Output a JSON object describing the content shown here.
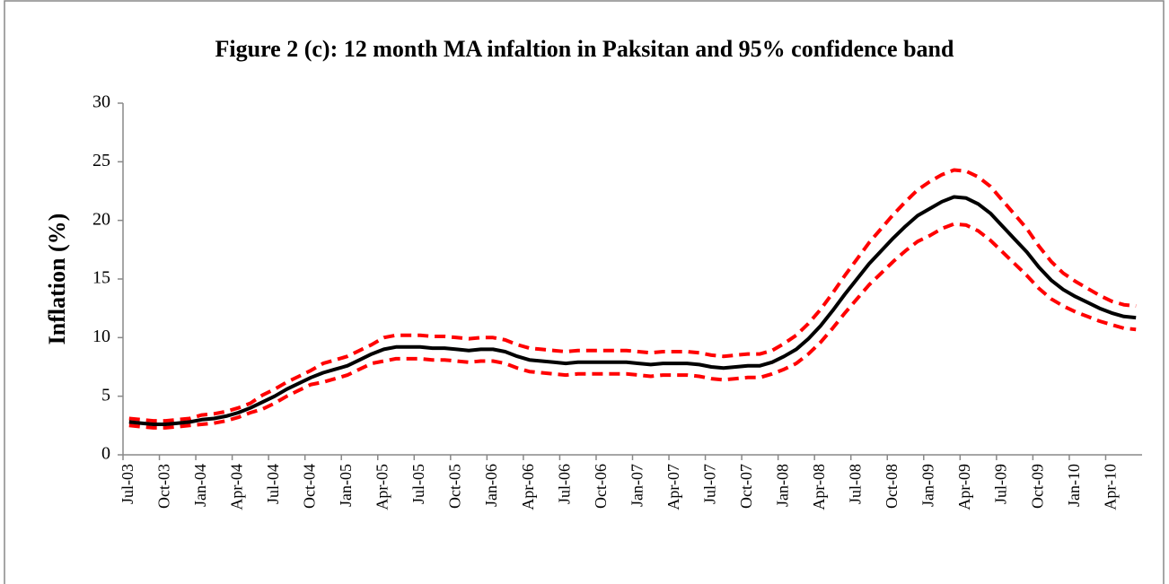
{
  "chart_data": {
    "type": "line",
    "title": "Figure 2 (c): 12 month MA infaltion in Paksitan and 95% confidence band",
    "ylabel": "Inflation (%)",
    "categories": [
      "Jul-03",
      null,
      null,
      "Oct-03",
      null,
      null,
      "Jan-04",
      null,
      null,
      "Apr-04",
      null,
      null,
      "Jul-04",
      null,
      null,
      "Oct-04",
      null,
      null,
      "Jan-05",
      null,
      null,
      "Apr-05",
      null,
      null,
      "Jul-05",
      null,
      null,
      "Oct-05",
      null,
      null,
      "Jan-06",
      null,
      null,
      "Apr-06",
      null,
      null,
      "Jul-06",
      null,
      null,
      "Oct-06",
      null,
      null,
      "Jan-07",
      null,
      null,
      "Apr-07",
      null,
      null,
      "Jul-07",
      null,
      null,
      "Oct-07",
      null,
      null,
      "Jan-08",
      null,
      null,
      "Apr-08",
      null,
      null,
      "Jul-08",
      null,
      null,
      "Oct-08",
      null,
      null,
      "Jan-09",
      null,
      null,
      "Apr-09",
      null,
      null,
      "Jul-09",
      null,
      null,
      "Oct-09",
      null,
      null,
      "Jan-10",
      null,
      null,
      "Apr-10",
      null,
      null
    ],
    "series": [
      {
        "color": "#ff0000",
        "dashed": true,
        "values": [
          3.1,
          3.0,
          2.9,
          2.9,
          3.0,
          3.1,
          3.4,
          3.5,
          3.7,
          4.0,
          4.4,
          5.1,
          5.6,
          6.2,
          6.7,
          7.2,
          7.8,
          8.1,
          8.4,
          8.9,
          9.4,
          10.0,
          10.2,
          10.2,
          10.2,
          10.1,
          10.1,
          10.0,
          9.9,
          10.0,
          10.0,
          9.8,
          9.4,
          9.1,
          9.0,
          8.9,
          8.8,
          8.9,
          8.9,
          8.9,
          8.9,
          8.9,
          8.8,
          8.7,
          8.8,
          8.8,
          8.8,
          8.7,
          8.5,
          8.4,
          8.5,
          8.6,
          8.6,
          8.9,
          9.5,
          10.2,
          11.2,
          12.4,
          13.8,
          15.3,
          16.7,
          18.1,
          19.3,
          20.5,
          21.6,
          22.6,
          23.3,
          23.9,
          24.3,
          24.2,
          23.7,
          22.9,
          21.7,
          20.5,
          19.3,
          17.8,
          16.5,
          15.5,
          14.8,
          14.2,
          13.6,
          13.1,
          12.8,
          12.7
        ]
      },
      {
        "color": "#ff0000",
        "dashed": true,
        "values": [
          2.5,
          2.4,
          2.3,
          2.3,
          2.4,
          2.5,
          2.6,
          2.7,
          2.9,
          3.2,
          3.6,
          3.9,
          4.4,
          5.0,
          5.5,
          6.0,
          6.2,
          6.5,
          6.8,
          7.3,
          7.8,
          8.0,
          8.2,
          8.2,
          8.2,
          8.1,
          8.1,
          8.0,
          7.9,
          8.0,
          8.0,
          7.8,
          7.4,
          7.1,
          7.0,
          6.9,
          6.8,
          6.9,
          6.9,
          6.9,
          6.9,
          6.9,
          6.8,
          6.7,
          6.8,
          6.8,
          6.8,
          6.7,
          6.5,
          6.4,
          6.5,
          6.6,
          6.6,
          6.9,
          7.3,
          7.8,
          8.6,
          9.6,
          10.8,
          12.1,
          13.3,
          14.5,
          15.5,
          16.5,
          17.4,
          18.2,
          18.7,
          19.3,
          19.7,
          19.6,
          19.1,
          18.3,
          17.3,
          16.3,
          15.3,
          14.2,
          13.3,
          12.7,
          12.2,
          11.8,
          11.4,
          11.1,
          10.8,
          10.7
        ]
      },
      {
        "color": "#000000",
        "dashed": false,
        "values": [
          2.8,
          2.7,
          2.6,
          2.6,
          2.7,
          2.8,
          3.0,
          3.1,
          3.3,
          3.6,
          4.0,
          4.5,
          5.0,
          5.6,
          6.1,
          6.6,
          7.0,
          7.3,
          7.6,
          8.1,
          8.6,
          9.0,
          9.2,
          9.2,
          9.2,
          9.1,
          9.1,
          9.0,
          8.9,
          9.0,
          9.0,
          8.8,
          8.4,
          8.1,
          8.0,
          7.9,
          7.8,
          7.9,
          7.9,
          7.9,
          7.9,
          7.9,
          7.8,
          7.7,
          7.8,
          7.8,
          7.8,
          7.7,
          7.5,
          7.4,
          7.5,
          7.6,
          7.6,
          7.9,
          8.4,
          9.0,
          9.9,
          11.0,
          12.3,
          13.7,
          15.0,
          16.3,
          17.4,
          18.5,
          19.5,
          20.4,
          21.0,
          21.6,
          22.0,
          21.9,
          21.4,
          20.6,
          19.5,
          18.4,
          17.3,
          16.0,
          14.9,
          14.1,
          13.5,
          13.0,
          12.5,
          12.1,
          11.8,
          11.7
        ]
      }
    ],
    "ylim": [
      0,
      30
    ],
    "yticks": [
      0,
      5,
      10,
      15,
      20,
      25,
      30
    ],
    "grid": false
  }
}
